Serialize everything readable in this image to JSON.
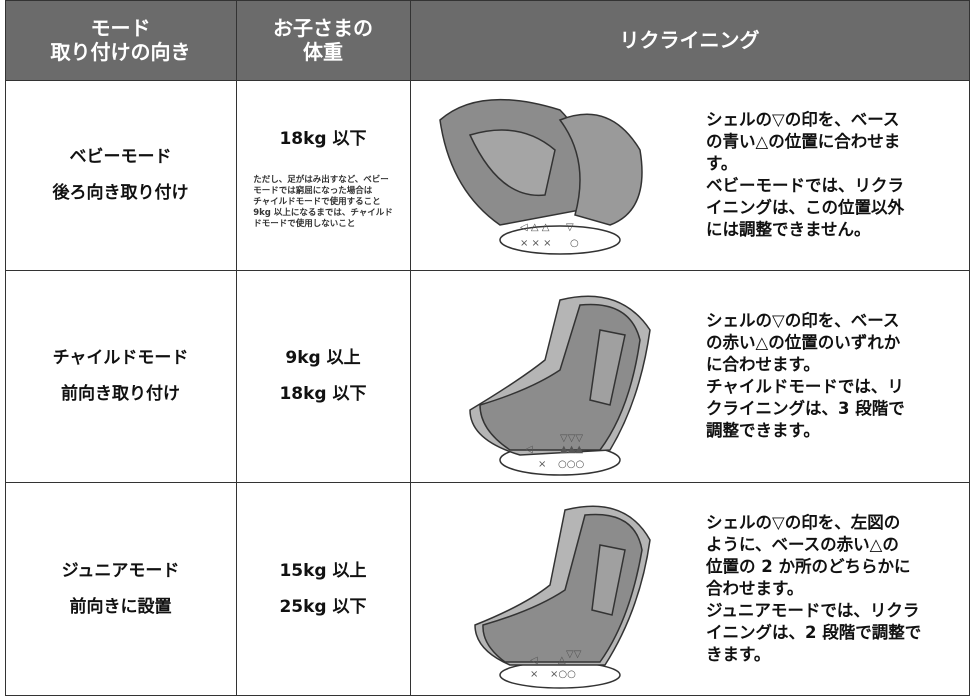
{
  "table": {
    "header": [
      [
        "モード",
        "取り付けの向き"
      ],
      [
        "お子さまの",
        "体重"
      ],
      [
        "リクライニング"
      ]
    ],
    "rows": [
      {
        "mode": [
          "ベビーモード",
          "後ろ向き取り付け"
        ],
        "weight": [
          "18kg 以下"
        ],
        "note": [
          "ただし、足がはみ出すなど、ベビー",
          "モードでは窮屈になった場合は",
          "チャイルドモードで使用すること",
          "9kg 以上になるまでは、チャイルド",
          "ドモードで使用しないこと"
        ],
        "marks": [
          "◁ △ △",
          "▽",
          "× × ×",
          "○"
        ],
        "instructions": [
          "シェルの▽の印を、ベース",
          "の青い△の位置に合わせま",
          "す。",
          "ベビーモードでは、リクラ",
          "イニングは、この位置以外",
          "には調整できません。"
        ]
      },
      {
        "mode": [
          "チャイルドモード",
          "前向き取り付け"
        ],
        "weight": [
          "9kg 以上",
          "18kg 以下"
        ],
        "marks": [
          "◁",
          "▽▽▽",
          "▲▲▲",
          "×",
          "○○○"
        ],
        "instructions": [
          "シェルの▽の印を、ベース",
          "の赤い△の位置のいずれか",
          "に合わせます。",
          "チャイルドモードでは、リ",
          "クライニングは、3 段階で",
          "調整できます。"
        ]
      },
      {
        "mode": [
          "ジュニアモード",
          "前向きに設置"
        ],
        "weight": [
          "15kg 以上",
          "25kg 以下"
        ],
        "marks": [
          "◁",
          "△",
          "▽▽",
          "×",
          "×○○"
        ],
        "instructions": [
          "シェルの▽の印を、左図の",
          "ように、ベースの赤い△の",
          "位置の 2 か所のどちらかに",
          "合わせます。",
          "ジュニアモードでは、リクラ",
          "イニングは、2 段階で調整で",
          "きます。"
        ]
      }
    ]
  }
}
